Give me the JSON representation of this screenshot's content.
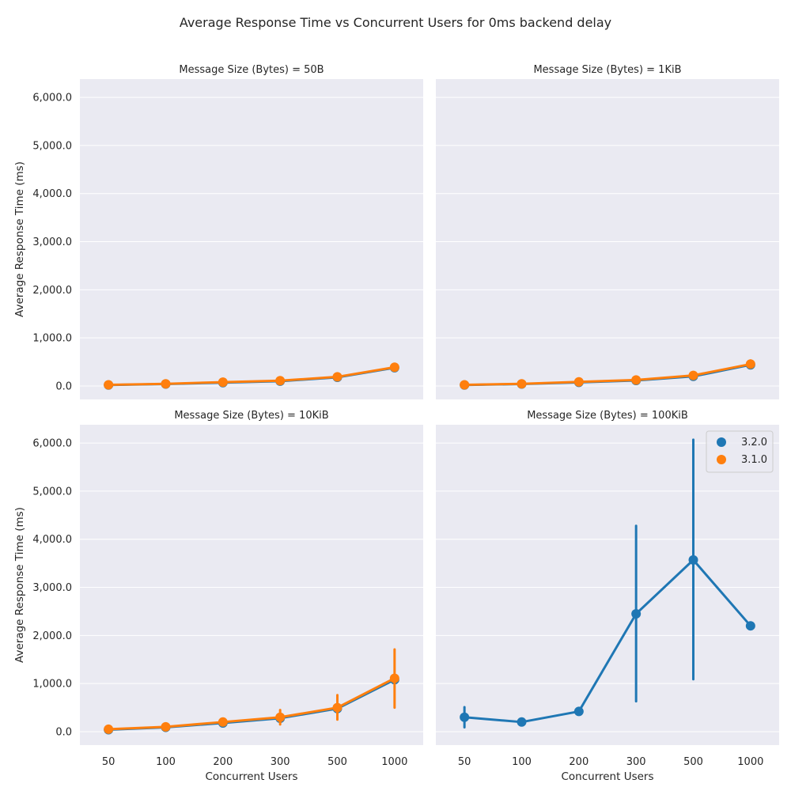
{
  "title": "Average Response Time vs Concurrent Users for 0ms backend delay",
  "colors": {
    "panel_bg": "#EAEAF2",
    "grid": "#FFFFFF",
    "s320": "#1F77B4",
    "s310": "#FF7F0E"
  },
  "legend": {
    "placement": "top-right",
    "panel_index": 3,
    "items": [
      "3.2.0",
      "3.1.0"
    ]
  },
  "chart_data": [
    {
      "type": "line",
      "title": "Message Size (Bytes) = 50B",
      "xlabel": "",
      "ylabel": "Average Response Time (ms)",
      "categories": [
        "50",
        "100",
        "200",
        "300",
        "500",
        "1000"
      ],
      "ylim": [
        -280,
        6380
      ],
      "yticks": [
        0,
        1000,
        2000,
        3000,
        4000,
        5000,
        6000
      ],
      "ytick_labels": [
        "0.0",
        "1,000.0",
        "2,000.0",
        "3,000.0",
        "4,000.0",
        "5,000.0",
        "6,000.0"
      ],
      "grid": true,
      "series": [
        {
          "name": "3.2.0",
          "color": "#1F77B4",
          "values": [
            20,
            40,
            70,
            100,
            180,
            380
          ],
          "err_low": [
            20,
            40,
            70,
            100,
            180,
            380
          ],
          "err_high": [
            20,
            40,
            70,
            100,
            180,
            380
          ]
        },
        {
          "name": "3.1.0",
          "color": "#FF7F0E",
          "values": [
            25,
            45,
            80,
            110,
            190,
            390
          ],
          "err_low": [
            25,
            45,
            75,
            100,
            180,
            370
          ],
          "err_high": [
            25,
            45,
            85,
            120,
            200,
            410
          ]
        }
      ]
    },
    {
      "type": "line",
      "title": "Message Size (Bytes) = 1KiB",
      "xlabel": "",
      "ylabel": "",
      "categories": [
        "50",
        "100",
        "200",
        "300",
        "500",
        "1000"
      ],
      "ylim": [
        -280,
        6380
      ],
      "yticks": [
        0,
        1000,
        2000,
        3000,
        4000,
        5000,
        6000
      ],
      "ytick_labels": [],
      "grid": true,
      "series": [
        {
          "name": "3.2.0",
          "color": "#1F77B4",
          "values": [
            20,
            40,
            75,
            115,
            200,
            440
          ],
          "err_low": [
            20,
            40,
            75,
            115,
            200,
            440
          ],
          "err_high": [
            20,
            40,
            75,
            115,
            200,
            440
          ]
        },
        {
          "name": "3.1.0",
          "color": "#FF7F0E",
          "values": [
            25,
            45,
            85,
            125,
            220,
            455
          ],
          "err_low": [
            25,
            45,
            80,
            110,
            200,
            390
          ],
          "err_high": [
            25,
            45,
            90,
            140,
            240,
            530
          ]
        }
      ]
    },
    {
      "type": "line",
      "title": "Message Size (Bytes) = 10KiB",
      "xlabel": "Concurrent Users",
      "ylabel": "Average Response Time (ms)",
      "categories": [
        "50",
        "100",
        "200",
        "300",
        "500",
        "1000"
      ],
      "ylim": [
        -280,
        6380
      ],
      "yticks": [
        0,
        1000,
        2000,
        3000,
        4000,
        5000,
        6000
      ],
      "ytick_labels": [
        "0.0",
        "1,000.0",
        "2,000.0",
        "3,000.0",
        "4,000.0",
        "5,000.0",
        "6,000.0"
      ],
      "grid": true,
      "series": [
        {
          "name": "3.2.0",
          "color": "#1F77B4",
          "values": [
            40,
            90,
            180,
            280,
            480,
            1080
          ],
          "err_low": [
            40,
            90,
            180,
            280,
            480,
            1080
          ],
          "err_high": [
            40,
            90,
            180,
            280,
            480,
            1080
          ]
        },
        {
          "name": "3.1.0",
          "color": "#FF7F0E",
          "values": [
            50,
            100,
            200,
            300,
            500,
            1110
          ],
          "err_low": [
            40,
            90,
            150,
            150,
            250,
            500
          ],
          "err_high": [
            60,
            110,
            260,
            450,
            760,
            1710
          ]
        }
      ]
    },
    {
      "type": "line",
      "title": "Message Size (Bytes) = 100KiB",
      "xlabel": "Concurrent Users",
      "ylabel": "",
      "categories": [
        "50",
        "100",
        "200",
        "300",
        "500",
        "1000"
      ],
      "ylim": [
        -280,
        6380
      ],
      "yticks": [
        0,
        1000,
        2000,
        3000,
        4000,
        5000,
        6000
      ],
      "ytick_labels": [],
      "grid": true,
      "series": [
        {
          "name": "3.2.0",
          "color": "#1F77B4",
          "values": [
            300,
            200,
            420,
            2450,
            3570,
            2200
          ],
          "err_low": [
            90,
            200,
            420,
            630,
            1090,
            2200
          ],
          "err_high": [
            510,
            200,
            420,
            4280,
            6070,
            2200
          ]
        }
      ]
    }
  ]
}
